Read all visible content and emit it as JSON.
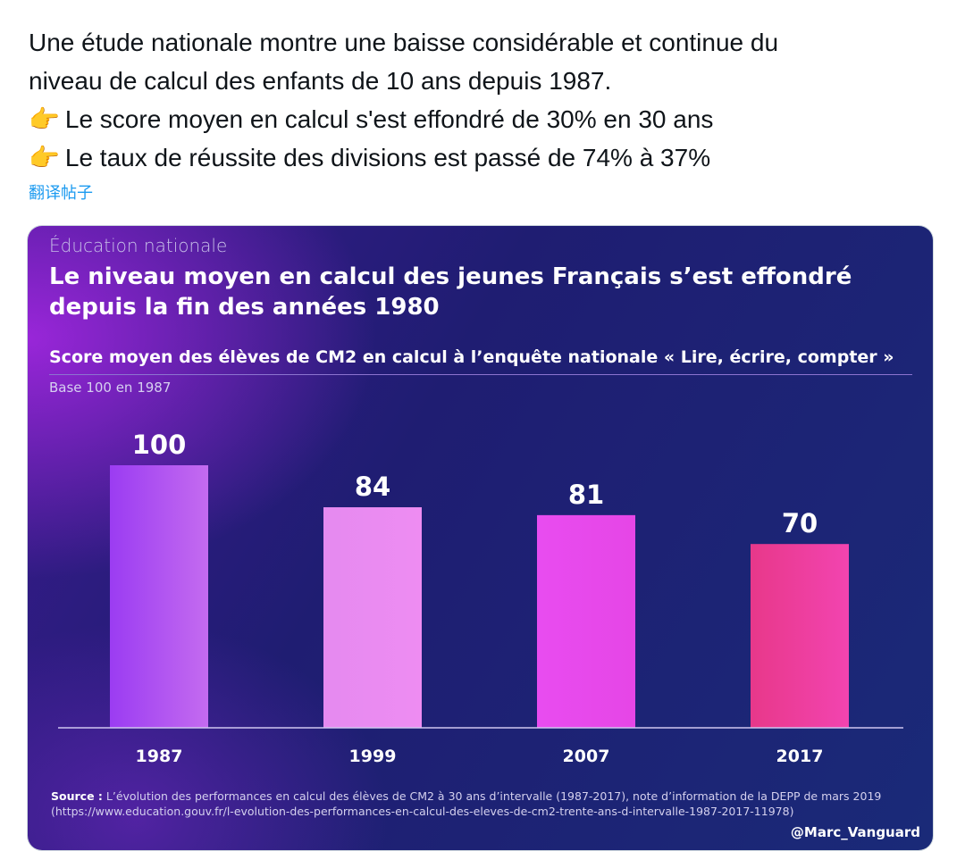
{
  "tweet": {
    "lines": [
      "Une étude nationale montre une baisse considérable et continue du",
      "niveau de calcul des enfants de 10 ans depuis 1987.",
      "Le score moyen en calcul s'est effondré de 30% en 30 ans",
      "Le taux de réussite des divisions est passé de 74% à 37%"
    ],
    "emoji": "👉",
    "translate_label": "翻译帖子"
  },
  "card": {
    "category": "Éducation nationale",
    "title": "Le niveau moyen en calcul des jeunes Français s’est effondré depuis la fin des années 1980",
    "subtitle": "Score moyen des élèves de CM2 en calcul à l’enquête nationale « Lire, écrire, compter »",
    "base": "Base 100 en 1987",
    "source_label": "Source :",
    "source_text": "L’évolution des performances en calcul des élèves de CM2 à 30 ans d’intervalle (1987-2017), note d’information de la DEPP de mars 2019 (https://www.education.gouv.fr/l-evolution-des-performances-en-calcul-des-eleves-de-cm2-trente-ans-d-intervalle-1987-2017-11978)",
    "handle": "@Marc_Vanguard"
  },
  "chart_data": {
    "type": "bar",
    "categories": [
      "1987",
      "1999",
      "2007",
      "2017"
    ],
    "values": [
      100,
      84,
      81,
      70
    ],
    "title": "Le niveau moyen en calcul des jeunes Français s’est effondré depuis la fin des années 1980",
    "subtitle": "Score moyen des élèves de CM2 en calcul à l’enquête nationale « Lire, écrire, compter »",
    "ylabel": "Base 100 en 1987",
    "ylim": [
      0,
      100
    ],
    "grid": false,
    "bar_colors": [
      [
        "#9b3cf2",
        "#c46bf0"
      ],
      [
        "#e58af0",
        "#ee8cf2"
      ],
      [
        "#e84cf0",
        "#e646e6"
      ],
      [
        "#e8388a",
        "#f244b0"
      ]
    ]
  }
}
